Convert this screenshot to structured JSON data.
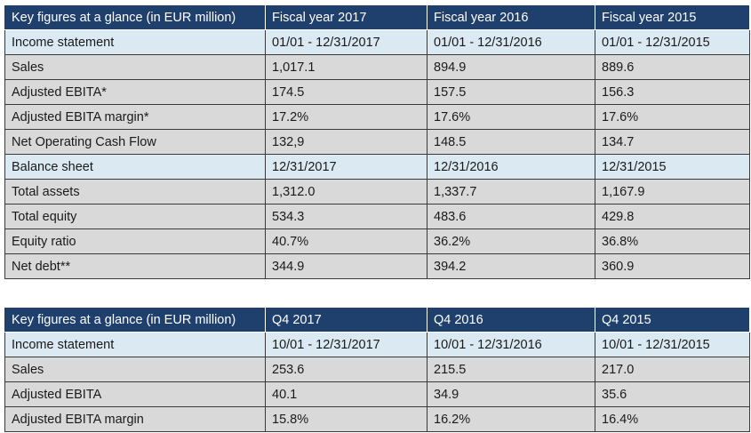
{
  "annual": {
    "header": [
      "Key figures at a glance (in EUR million)",
      "Fiscal year 2017",
      "Fiscal year 2016",
      "Fiscal year 2015"
    ],
    "rows": [
      {
        "section": true,
        "cells": [
          "Income statement",
          "01/01 - 12/31/2017",
          "01/01 - 12/31/2016",
          "01/01 - 12/31/2015"
        ]
      },
      {
        "section": false,
        "cells": [
          "Sales",
          "1,017.1",
          "894.9",
          "889.6"
        ]
      },
      {
        "section": false,
        "cells": [
          "Adjusted EBITA*",
          "174.5",
          "157.5",
          "156.3"
        ]
      },
      {
        "section": false,
        "cells": [
          "Adjusted EBITA margin*",
          "17.2%",
          "17.6%",
          "17.6%"
        ]
      },
      {
        "section": false,
        "cells": [
          "Net Operating Cash Flow",
          "132,9",
          "148.5",
          "134.7"
        ]
      },
      {
        "section": true,
        "cells": [
          "Balance sheet",
          "12/31/2017",
          "12/31/2016",
          "12/31/2015"
        ]
      },
      {
        "section": false,
        "cells": [
          "Total assets",
          "1,312.0",
          "1,337.7",
          "1,167.9"
        ]
      },
      {
        "section": false,
        "cells": [
          "Total equity",
          "534.3",
          "483.6",
          "429.8"
        ]
      },
      {
        "section": false,
        "cells": [
          "Equity ratio",
          "40.7%",
          "36.2%",
          "36.8%"
        ]
      },
      {
        "section": false,
        "cells": [
          "Net debt**",
          "344.9",
          "394.2",
          "360.9"
        ]
      }
    ]
  },
  "quarter": {
    "header": [
      "Key figures at a glance (in EUR million)",
      "Q4 2017",
      "Q4 2016",
      "Q4 2015"
    ],
    "rows": [
      {
        "section": true,
        "cells": [
          "Income statement",
          "10/01 - 12/31/2017",
          "10/01 - 12/31/2016",
          "10/01 - 12/31/2015"
        ]
      },
      {
        "section": false,
        "cells": [
          "Sales",
          "253.6",
          "215.5",
          "217.0"
        ]
      },
      {
        "section": false,
        "cells": [
          "Adjusted EBITA",
          "40.1",
          "34.9",
          "35.6"
        ]
      },
      {
        "section": false,
        "cells": [
          "Adjusted EBITA margin",
          "15.8%",
          "16.2%",
          "16.4%"
        ]
      }
    ]
  }
}
